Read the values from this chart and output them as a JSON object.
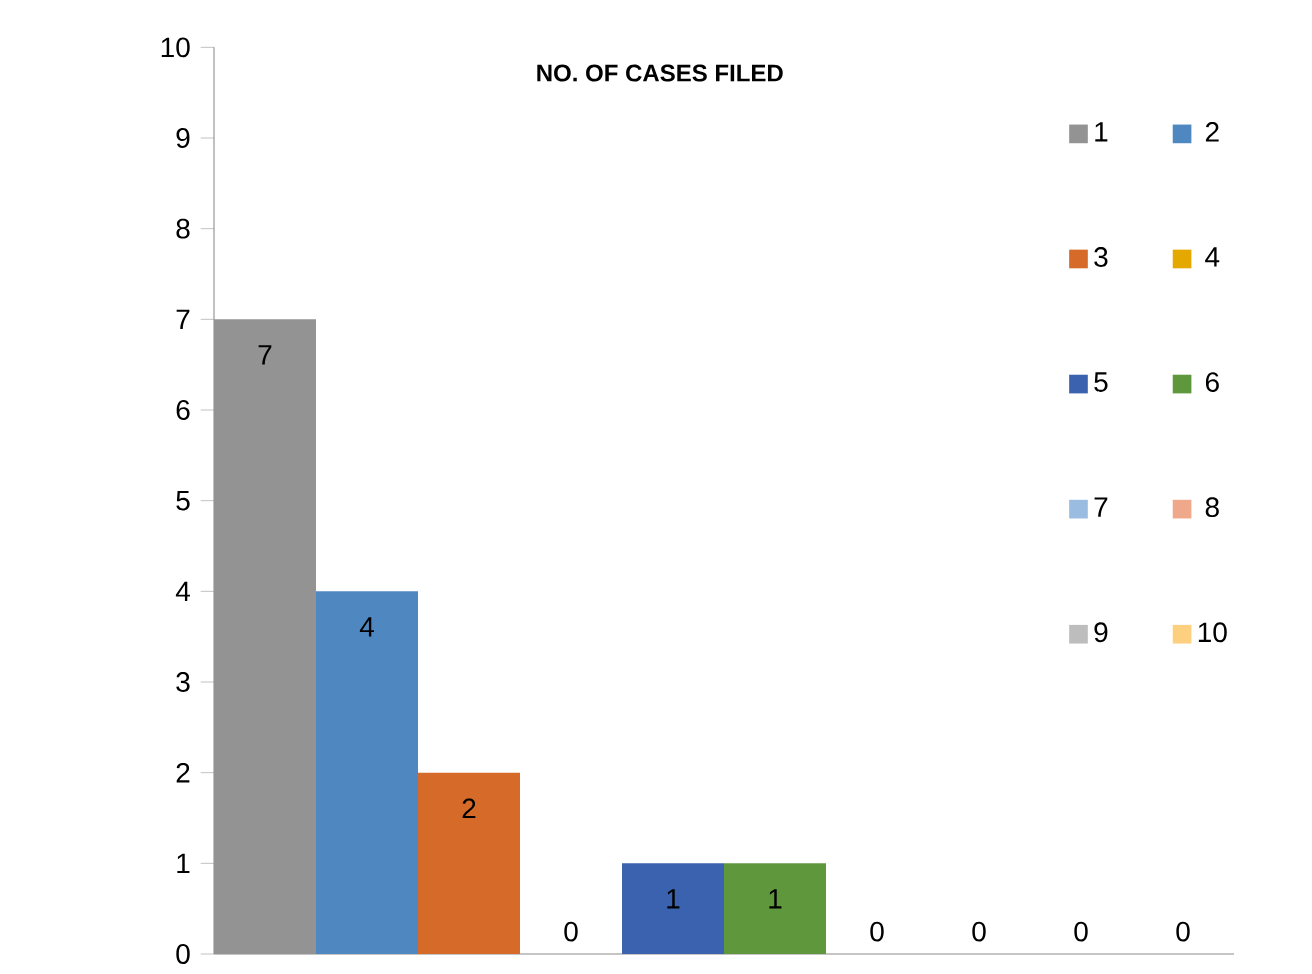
{
  "chart_data": {
    "type": "bar",
    "title": "NO. OF CASES FILED",
    "categories": [
      null,
      null,
      null,
      null,
      null,
      null,
      null,
      null,
      null,
      null
    ],
    "series": [
      {
        "name": "1",
        "color": "#939393",
        "values": [
          7,
          null,
          null,
          null,
          null,
          null,
          null,
          null,
          null,
          null
        ]
      },
      {
        "name": "2",
        "color": "#4f87c0",
        "values": [
          null,
          4,
          null,
          null,
          null,
          null,
          null,
          null,
          null,
          null
        ]
      },
      {
        "name": "3",
        "color": "#d56a29",
        "values": [
          null,
          null,
          2,
          null,
          null,
          null,
          null,
          null,
          null,
          null
        ]
      },
      {
        "name": "4",
        "color": "#e5a800",
        "values": [
          null,
          null,
          null,
          0,
          null,
          null,
          null,
          null,
          null,
          null
        ]
      },
      {
        "name": "5",
        "color": "#3b62ae",
        "values": [
          null,
          null,
          null,
          null,
          1,
          null,
          null,
          null,
          null,
          null
        ]
      },
      {
        "name": "6",
        "color": "#5f973c",
        "values": [
          null,
          null,
          null,
          null,
          null,
          1,
          null,
          null,
          null,
          null
        ]
      },
      {
        "name": "7",
        "color": "#9abce0",
        "values": [
          null,
          null,
          null,
          null,
          null,
          null,
          0,
          null,
          null,
          null
        ]
      },
      {
        "name": "8",
        "color": "#f0a88a",
        "values": [
          null,
          null,
          null,
          null,
          null,
          null,
          null,
          0,
          null,
          null
        ]
      },
      {
        "name": "9",
        "color": "#bdbdbd",
        "values": [
          null,
          null,
          null,
          null,
          null,
          null,
          null,
          null,
          0,
          null
        ]
      },
      {
        "name": "10",
        "color": "#fdd080",
        "values": [
          null,
          null,
          null,
          null,
          null,
          null,
          null,
          null,
          null,
          0
        ]
      }
    ],
    "ylim": [
      0,
      10
    ],
    "yticks": [
      0,
      1,
      2,
      3,
      4,
      5,
      6,
      7,
      8,
      9,
      10
    ],
    "data_labels": true,
    "legend": "top right"
  }
}
